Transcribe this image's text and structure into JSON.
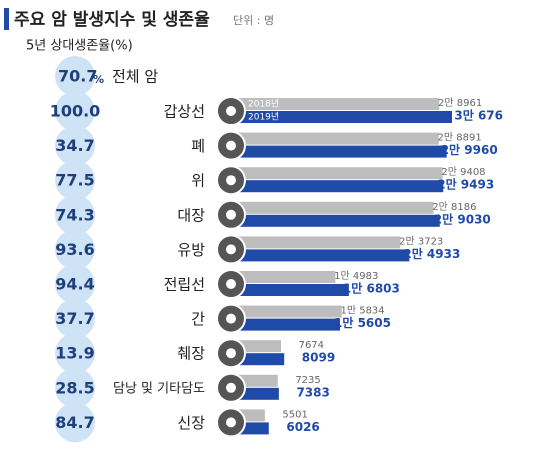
{
  "chart_data": {
    "type": "bar",
    "title": "주요 암 발생지수 및 생존율",
    "unit_note": "단위 : 명",
    "subtitle": "5년 상대생존율(%)",
    "overall": {
      "label": "전체 암",
      "value": 70.7,
      "unit": "%"
    },
    "categories": [
      "갑상선",
      "폐",
      "위",
      "대장",
      "유방",
      "전립선",
      "간",
      "췌장",
      "담낭 및 기타담도",
      "신장"
    ],
    "survival": {
      "values": [
        100.0,
        34.7,
        77.5,
        74.3,
        93.6,
        94.4,
        37.7,
        13.9,
        28.5,
        84.7
      ],
      "value_labels": [
        "100.0",
        "34.7",
        "77.5",
        "74.3",
        "93.6",
        "94.4",
        "37.7",
        "13.9",
        "28.5",
        "84.7"
      ],
      "color": "#cfe3f7"
    },
    "series": [
      {
        "name": "2018년",
        "color": "#bdbdbd",
        "values": [
          28961,
          28891,
          29408,
          28186,
          23723,
          14983,
          15834,
          7674,
          7235,
          5501
        ],
        "value_labels": [
          "2만 8961",
          "2만 8891",
          "2만 9408",
          "2만 8186",
          "2만 3723",
          "1만 4983",
          "1만 5834",
          "7674",
          "7235",
          "5501"
        ]
      },
      {
        "name": "2019년",
        "color": "#1f4aa8",
        "values": [
          30676,
          29960,
          29493,
          29030,
          24933,
          16803,
          15605,
          8099,
          7383,
          6026
        ],
        "value_labels": [
          "3만 676",
          "2만 9960",
          "2만 9493",
          "2만 9030",
          "2만 4933",
          "1만 6803",
          "1만 5605",
          "8099",
          "7383",
          "6026"
        ]
      }
    ]
  }
}
